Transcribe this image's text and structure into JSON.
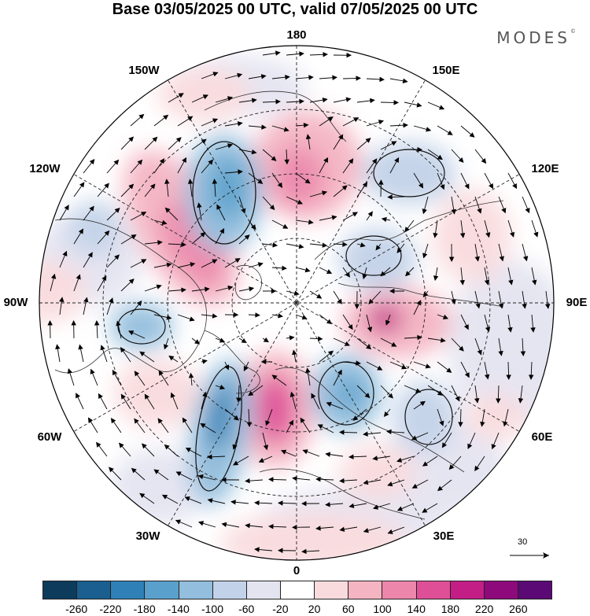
{
  "title": "Base 03/05/2025 00 UTC, valid 07/05/2025 00 UTC",
  "brand": "MODES",
  "brand_mark": "©",
  "longitude_labels": {
    "top": "180",
    "bottom": "0",
    "left": "90W",
    "right": "90E",
    "upper_left_1": "150W",
    "upper_left_2": "120W",
    "lower_left_1": "60W",
    "lower_left_2": "30W",
    "upper_right_1": "150E",
    "upper_right_2": "120E",
    "lower_right_1": "60E",
    "lower_right_2": "30E"
  },
  "reference_vector": {
    "label": "30"
  },
  "colorbar": {
    "colors": [
      "#0d3b5c",
      "#1a5f8f",
      "#2f80b6",
      "#5aa0cc",
      "#93bedd",
      "#c2d2e8",
      "#e4e4f1",
      "#ffffff",
      "#f9dbde",
      "#f4b4c2",
      "#ec86aa",
      "#df4f97",
      "#c31d86",
      "#8e0a7c",
      "#5b0a75"
    ],
    "ticks": [
      "-260",
      "-220",
      "-180",
      "-140",
      "-100",
      "-60",
      "-20",
      "20",
      "60",
      "100",
      "140",
      "180",
      "220",
      "260"
    ]
  },
  "icons": [
    "arrow-vector-icon"
  ]
}
